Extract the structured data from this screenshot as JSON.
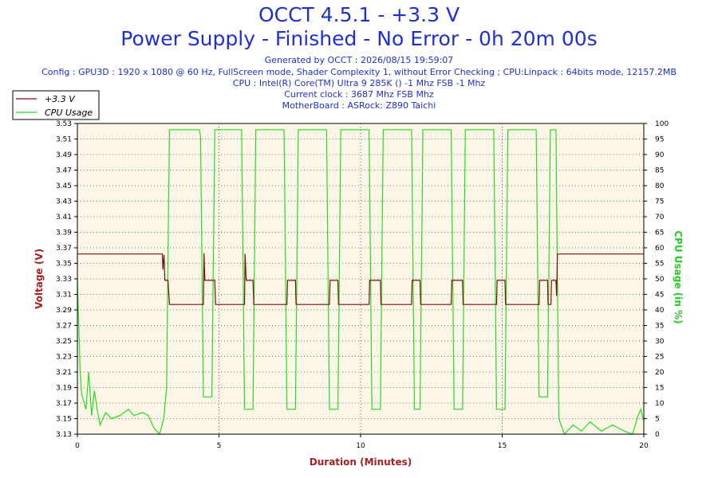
{
  "header": {
    "title_line1": "OCCT 4.5.1 - +3.3 V",
    "title_line2": "Power Supply - Finished - No Error - 0h 20m 00s",
    "generated": "Generated by OCCT : 2026/08/15 19:59:07",
    "config": "Config : GPU3D : 1920 x 1080 @ 60 Hz, FullScreen mode, Shader Complexity 1, without Error Checking ; CPU:Linpack : 64bits mode, 12157.2MB",
    "cpu": "CPU : Intel(R) Core(TM) Ultra 9 285K () -1 Mhz FSB -1 Mhz",
    "clock": "Current clock : 3687 Mhz FSB  Mhz",
    "motherboard": "MotherBoard : ASRock: Z890 Taichi"
  },
  "colors": {
    "title": "#1f2fd0",
    "voltage_series": "#7a0f0f",
    "cpu_series": "#22dd22",
    "plot_background": "#fdf5e6",
    "left_axis_label": "#aa2020",
    "right_axis_label": "#22cc22",
    "x_axis_label": "#aa2020"
  },
  "chart_data": {
    "type": "line",
    "x_label": "Duration (Minutes)",
    "y_left_label": "Voltage (V)",
    "y_right_label": "CPU Usage (in %)",
    "x_range": [
      0,
      20
    ],
    "y_left_range": [
      3.13,
      3.53
    ],
    "y_right_range": [
      0,
      100
    ],
    "x_ticks": [
      0,
      5,
      10,
      15,
      20
    ],
    "y_left_ticks": [
      3.13,
      3.15,
      3.17,
      3.19,
      3.21,
      3.23,
      3.25,
      3.27,
      3.29,
      3.31,
      3.33,
      3.35,
      3.37,
      3.39,
      3.41,
      3.43,
      3.45,
      3.47,
      3.49,
      3.51,
      3.53
    ],
    "y_right_ticks": [
      0,
      5,
      10,
      15,
      20,
      25,
      30,
      35,
      40,
      45,
      50,
      55,
      60,
      65,
      70,
      75,
      80,
      85,
      90,
      95,
      100
    ],
    "grid": true,
    "legend_position": "top-left",
    "series": [
      {
        "name": "+3.3 V",
        "axis": "left",
        "points": [
          [
            0,
            3.362
          ],
          [
            3.0,
            3.362
          ],
          [
            3.02,
            3.342
          ],
          [
            3.06,
            3.361
          ],
          [
            3.09,
            3.328
          ],
          [
            3.2,
            3.328
          ],
          [
            3.25,
            3.297
          ],
          [
            4.45,
            3.297
          ],
          [
            4.47,
            3.363
          ],
          [
            4.5,
            3.328
          ],
          [
            4.85,
            3.328
          ],
          [
            4.88,
            3.297
          ],
          [
            5.9,
            3.297
          ],
          [
            5.92,
            3.362
          ],
          [
            5.96,
            3.328
          ],
          [
            6.2,
            3.328
          ],
          [
            6.23,
            3.297
          ],
          [
            7.4,
            3.297
          ],
          [
            7.42,
            3.328
          ],
          [
            7.7,
            3.328
          ],
          [
            7.72,
            3.297
          ],
          [
            8.9,
            3.297
          ],
          [
            8.92,
            3.328
          ],
          [
            9.2,
            3.328
          ],
          [
            9.22,
            3.297
          ],
          [
            10.3,
            3.297
          ],
          [
            10.32,
            3.328
          ],
          [
            10.7,
            3.328
          ],
          [
            10.72,
            3.297
          ],
          [
            11.8,
            3.297
          ],
          [
            11.82,
            3.328
          ],
          [
            12.1,
            3.328
          ],
          [
            12.12,
            3.297
          ],
          [
            13.2,
            3.297
          ],
          [
            13.22,
            3.328
          ],
          [
            13.6,
            3.328
          ],
          [
            13.62,
            3.297
          ],
          [
            14.8,
            3.297
          ],
          [
            14.82,
            3.328
          ],
          [
            15.1,
            3.328
          ],
          [
            15.12,
            3.297
          ],
          [
            16.3,
            3.297
          ],
          [
            16.32,
            3.328
          ],
          [
            16.6,
            3.328
          ],
          [
            16.62,
            3.297
          ],
          [
            16.72,
            3.297
          ],
          [
            16.74,
            3.328
          ],
          [
            16.9,
            3.328
          ],
          [
            16.92,
            3.308
          ],
          [
            16.95,
            3.362
          ],
          [
            20,
            3.362
          ]
        ]
      },
      {
        "name": "CPU Usage",
        "axis": "right",
        "points": [
          [
            0,
            50
          ],
          [
            0.1,
            20
          ],
          [
            0.15,
            13
          ],
          [
            0.3,
            8
          ],
          [
            0.4,
            20
          ],
          [
            0.5,
            6
          ],
          [
            0.6,
            14
          ],
          [
            0.7,
            8
          ],
          [
            0.8,
            3
          ],
          [
            1.0,
            7
          ],
          [
            1.2,
            5
          ],
          [
            1.5,
            6
          ],
          [
            1.8,
            8
          ],
          [
            2.0,
            6
          ],
          [
            2.3,
            7
          ],
          [
            2.5,
            6
          ],
          [
            2.7,
            2
          ],
          [
            2.9,
            0
          ],
          [
            3.05,
            5
          ],
          [
            3.15,
            15
          ],
          [
            3.25,
            98
          ],
          [
            4.3,
            98
          ],
          [
            4.35,
            96
          ],
          [
            4.45,
            12
          ],
          [
            4.75,
            12
          ],
          [
            4.85,
            98
          ],
          [
            5.8,
            98
          ],
          [
            5.9,
            8
          ],
          [
            6.2,
            8
          ],
          [
            6.3,
            98
          ],
          [
            7.3,
            98
          ],
          [
            7.4,
            8
          ],
          [
            7.7,
            8
          ],
          [
            7.8,
            98
          ],
          [
            8.8,
            98
          ],
          [
            8.9,
            8
          ],
          [
            9.2,
            8
          ],
          [
            9.3,
            98
          ],
          [
            10.3,
            98
          ],
          [
            10.4,
            8
          ],
          [
            10.7,
            8
          ],
          [
            10.8,
            98
          ],
          [
            11.8,
            98
          ],
          [
            11.9,
            8
          ],
          [
            12.1,
            8
          ],
          [
            12.2,
            98
          ],
          [
            13.2,
            98
          ],
          [
            13.3,
            8
          ],
          [
            13.6,
            8
          ],
          [
            13.7,
            98
          ],
          [
            14.7,
            98
          ],
          [
            14.8,
            8
          ],
          [
            15.1,
            8
          ],
          [
            15.2,
            98
          ],
          [
            16.2,
            98
          ],
          [
            16.3,
            12
          ],
          [
            16.6,
            12
          ],
          [
            16.7,
            98
          ],
          [
            16.9,
            98
          ],
          [
            17.0,
            5
          ],
          [
            17.2,
            0
          ],
          [
            17.5,
            3
          ],
          [
            17.8,
            1
          ],
          [
            18.1,
            4
          ],
          [
            18.5,
            1
          ],
          [
            18.9,
            3
          ],
          [
            19.3,
            1
          ],
          [
            19.6,
            0
          ],
          [
            19.8,
            6
          ],
          [
            19.9,
            8
          ],
          [
            20,
            4
          ]
        ]
      }
    ]
  }
}
